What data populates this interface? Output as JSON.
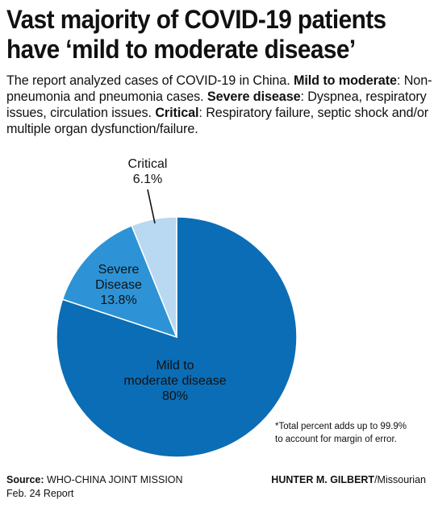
{
  "title_line1": "Vast majority of COVID-19 patients",
  "title_line2": "have ‘mild to moderate disease’",
  "intro": {
    "t1": "The report analyzed cases of COVID-19 in China. ",
    "mild_term": "Mild to moderate",
    "t2": ": Non-pneumonia and pneumonia cases. ",
    "severe_term": "Severe disease",
    "t3": ": Dyspnea, respiratory issues, circulation issues. ",
    "critical_term": "Critical",
    "t4": ": Respiratory failure, septic shock and/or multiple organ dysfunction/failure."
  },
  "chart_data": {
    "type": "pie",
    "slices": [
      {
        "label_lines": [
          "Mild to",
          "moderate disease",
          "80%"
        ],
        "value": 80,
        "color": "#0b6db5"
      },
      {
        "label_lines": [
          "Severe",
          "Disease",
          "13.8%"
        ],
        "value": 13.8,
        "color": "#2d93d6"
      },
      {
        "label_lines": [
          "Critical",
          "6.1%"
        ],
        "value": 6.1,
        "color": "#b9d8f1"
      }
    ]
  },
  "footnote_line1": "*Total percent adds up to 99.9%",
  "footnote_line2": "to account for margin of error.",
  "source": {
    "label": "Source:",
    "text_line1": " WHO-CHINA JOINT MISSION",
    "text_line2": "Feb. 24 Report"
  },
  "credit": {
    "name": "HUNTER M. GILBERT",
    "org": "/Missourian"
  }
}
